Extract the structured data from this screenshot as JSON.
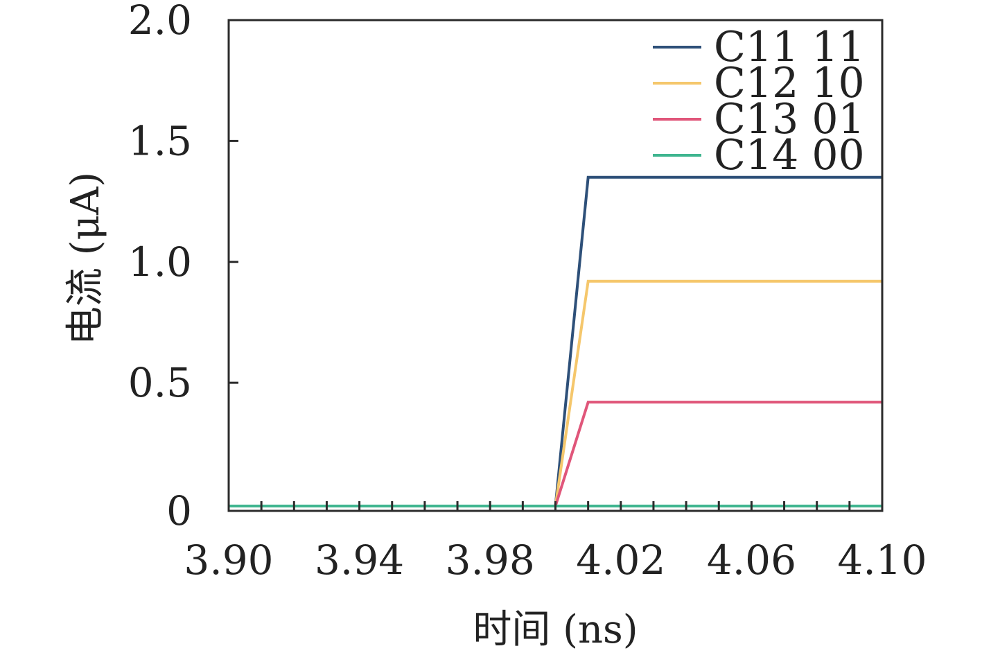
{
  "chart_data": {
    "type": "line",
    "title": "",
    "xlabel": "时间 (ns)",
    "ylabel": "电流 (μA)",
    "xlim": [
      3.9,
      4.1
    ],
    "ylim": [
      -0.03,
      2.0
    ],
    "x_ticks": [
      3.9,
      3.94,
      3.98,
      4.02,
      4.06,
      4.1
    ],
    "x_tick_labels": [
      "3.90",
      "3.94",
      "3.98",
      "4.02",
      "4.06",
      "4.10"
    ],
    "x_minor_step": 0.01,
    "y_ticks": [
      -0.03,
      0.5,
      1.0,
      1.5,
      2.0
    ],
    "y_tick_labels": [
      "0",
      "0.5",
      "1.0",
      "1.5",
      "2.0"
    ],
    "grid": false,
    "legend_position": "top-right",
    "series": [
      {
        "name": "C11 11",
        "color": "#2e5079",
        "x": [
          3.9,
          4.0,
          4.01,
          4.1
        ],
        "y": [
          -0.01,
          -0.01,
          1.35,
          1.35
        ]
      },
      {
        "name": "C12 10",
        "color": "#f5c76c",
        "x": [
          3.9,
          4.0,
          4.01,
          4.1
        ],
        "y": [
          -0.01,
          -0.01,
          0.92,
          0.92
        ]
      },
      {
        "name": "C13 01",
        "color": "#e0567a",
        "x": [
          3.9,
          4.0,
          4.01,
          4.1
        ],
        "y": [
          -0.01,
          -0.01,
          0.42,
          0.42
        ]
      },
      {
        "name": "C14 00",
        "color": "#3fb58f",
        "x": [
          3.9,
          4.0,
          4.01,
          4.1
        ],
        "y": [
          -0.01,
          -0.01,
          -0.01,
          -0.01
        ]
      }
    ]
  }
}
